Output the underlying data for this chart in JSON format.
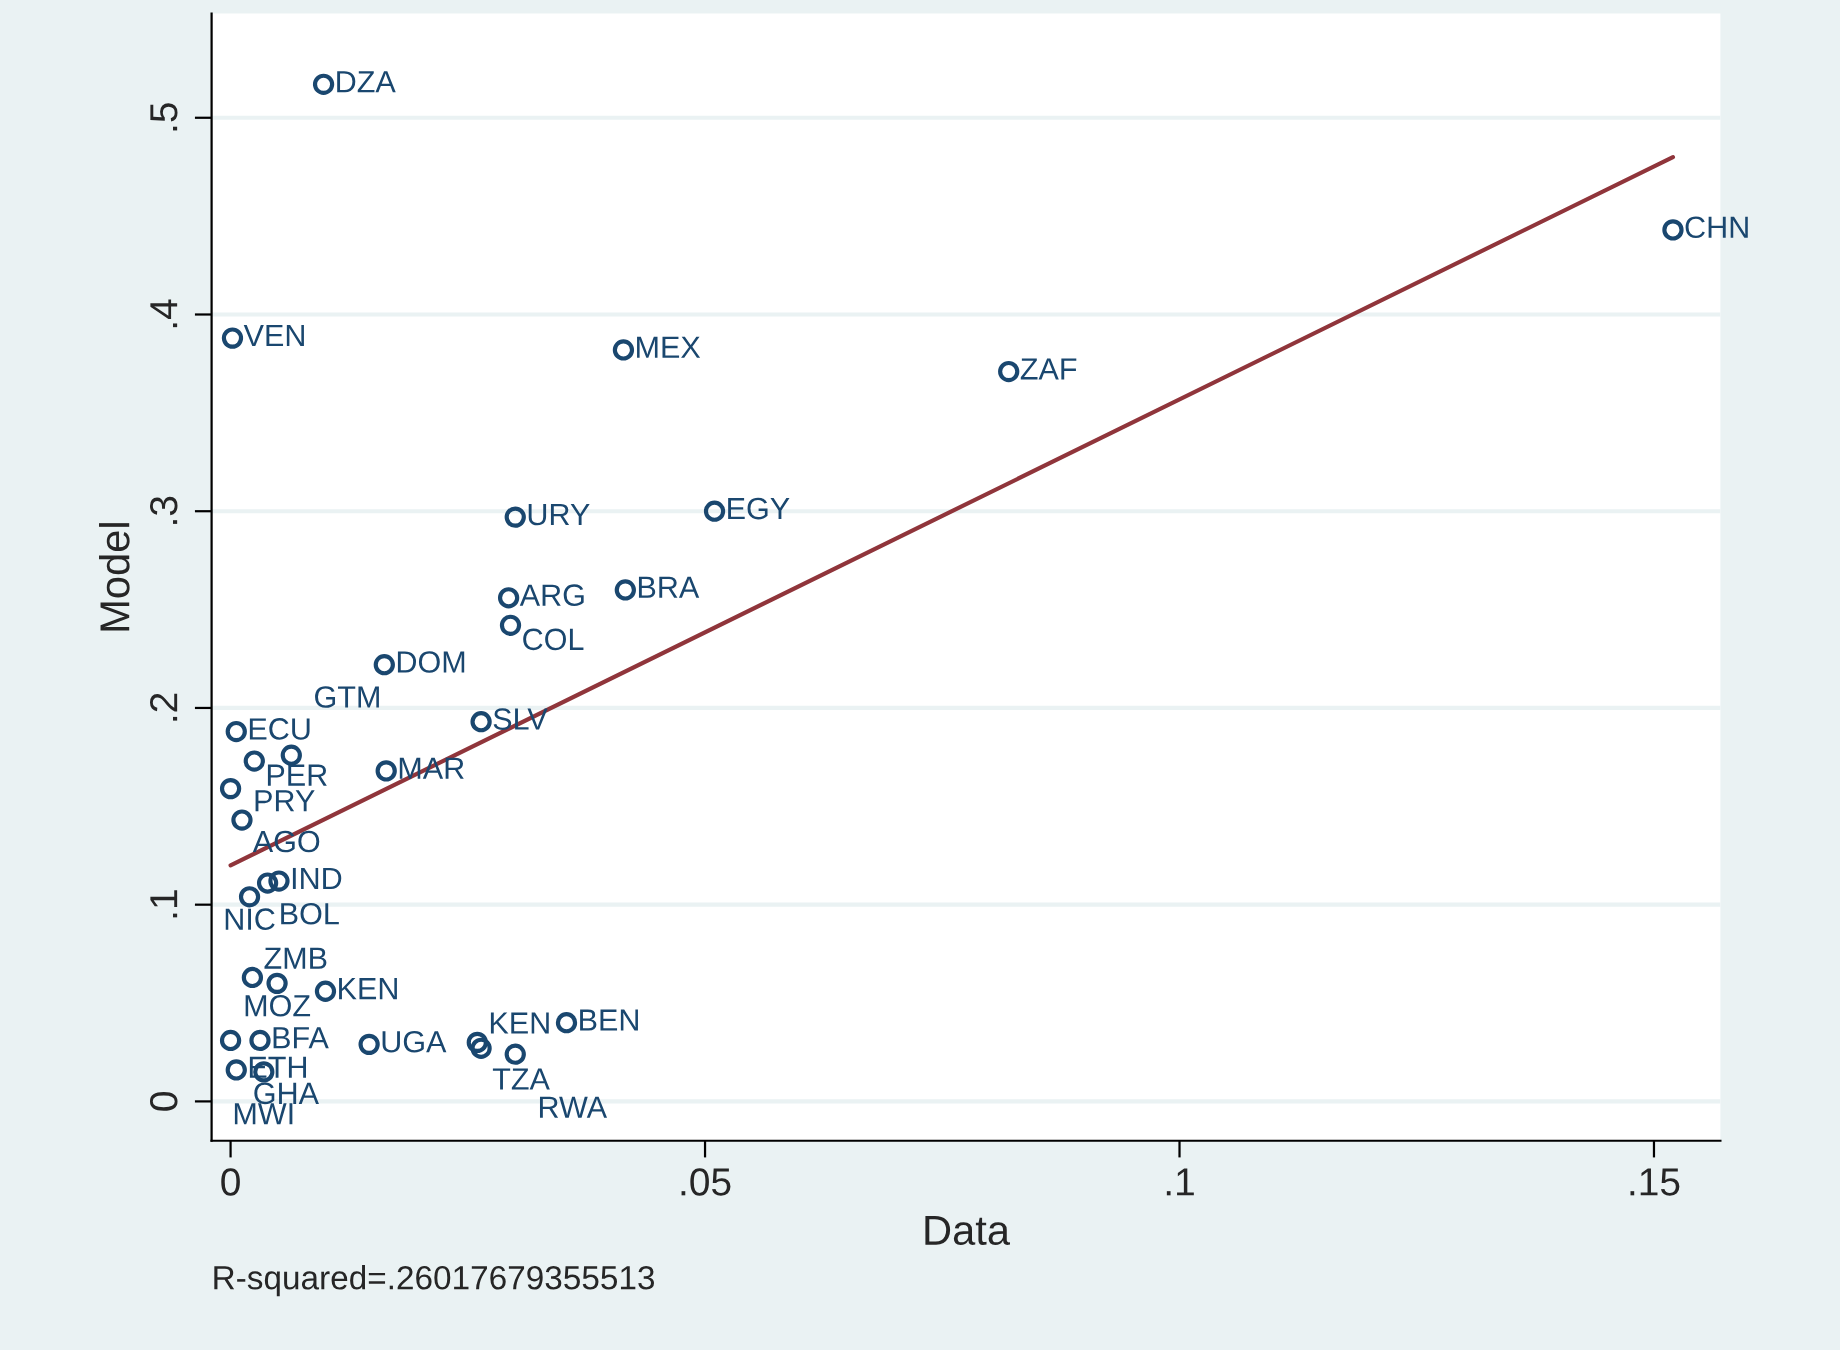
{
  "chart_data": {
    "type": "scatter",
    "xlabel": "Data",
    "ylabel": "Model",
    "xlim": [
      -0.002,
      0.157
    ],
    "ylim": [
      -0.02,
      0.553
    ],
    "xticks": [
      {
        "value": 0,
        "label": "0"
      },
      {
        "value": 0.05,
        "label": ".05"
      },
      {
        "value": 0.1,
        "label": ".1"
      },
      {
        "value": 0.15,
        "label": ".15"
      }
    ],
    "yticks": [
      {
        "value": 0,
        "label": "0"
      },
      {
        "value": 0.1,
        "label": ".1"
      },
      {
        "value": 0.2,
        "label": ".2"
      },
      {
        "value": 0.3,
        "label": ".3"
      },
      {
        "value": 0.4,
        "label": ".4"
      },
      {
        "value": 0.5,
        "label": ".5"
      }
    ],
    "grid": "y",
    "series": [
      {
        "type": "scatter",
        "marker": "circle",
        "color": "#1a476f",
        "x": [
          0.0098,
          0.0002,
          0.0414,
          0.082,
          0.152,
          0.03,
          0.051,
          0.0293,
          0.0416,
          0.0295,
          0.0162,
          0.0264,
          0.0006,
          0.0025,
          0.0064,
          0.0164,
          0.0,
          0.0012,
          0.0039,
          0.0051,
          0.002,
          0.0023,
          0.0049,
          0.01,
          0.0,
          0.0031,
          0.0006,
          0.0035,
          0.0146,
          0.026,
          0.0264,
          0.03,
          0.0354
        ],
        "values": [
          0.517,
          0.388,
          0.382,
          0.371,
          0.443,
          0.297,
          0.3,
          0.256,
          0.26,
          0.242,
          0.222,
          0.193,
          0.188,
          0.173,
          0.176,
          0.168,
          0.159,
          0.143,
          0.111,
          0.112,
          0.104,
          0.063,
          0.06,
          0.056,
          0.031,
          0.031,
          0.016,
          0.015,
          0.029,
          0.03,
          0.027,
          0.024,
          0.04
        ],
        "value_labels": [
          "DZA",
          "VEN",
          "MEX",
          "ZAF",
          "CHN",
          "URY",
          "EGY",
          "ARG",
          "BRA",
          "COL",
          "DOM",
          "SLV",
          "ECU",
          "PER",
          "GTM",
          "MAR",
          "AGO",
          "PRY",
          "BOL",
          "IND",
          "NIC",
          "ZMB",
          "MOZ",
          "KEN",
          "GHA",
          "BFA",
          "ETH",
          "MWI",
          "UGA",
          "KEN",
          "TZA",
          "RWA",
          "BEN"
        ]
      },
      {
        "type": "line",
        "color": "#90353b",
        "x": [
          0.0,
          0.152
        ],
        "values": [
          0.12,
          0.48
        ]
      }
    ],
    "annotations": [
      "R-squared=.26017679355513"
    ]
  }
}
